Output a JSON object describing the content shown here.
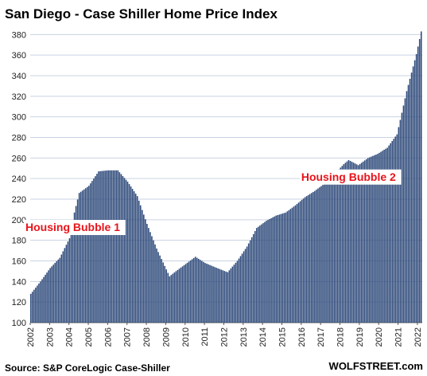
{
  "chart_data": {
    "type": "bar",
    "title": "San Diego - Case Shiller Home Price Index",
    "xlabel": "",
    "ylabel": "",
    "ylim": [
      100,
      388
    ],
    "yticks": [
      100,
      120,
      140,
      160,
      180,
      200,
      220,
      240,
      260,
      280,
      300,
      320,
      340,
      360,
      380
    ],
    "xticks": [
      "2002",
      "2003",
      "2004",
      "2005",
      "2006",
      "2007",
      "2008",
      "2009",
      "2010",
      "2011",
      "2012",
      "2013",
      "2014",
      "2015",
      "2016",
      "2017",
      "2018",
      "2019",
      "2020",
      "2021",
      "2022"
    ],
    "grid": true,
    "bar_color": "#2E4A7A",
    "start_month": "2002-01",
    "anchors": [
      [
        "2002-01",
        128
      ],
      [
        "2002-07",
        140
      ],
      [
        "2003-01",
        153
      ],
      [
        "2003-07",
        163
      ],
      [
        "2004-01",
        182
      ],
      [
        "2004-04",
        207
      ],
      [
        "2004-07",
        226
      ],
      [
        "2005-01",
        233
      ],
      [
        "2005-07",
        247
      ],
      [
        "2006-01",
        248
      ],
      [
        "2006-07",
        248
      ],
      [
        "2007-01",
        237
      ],
      [
        "2007-07",
        223
      ],
      [
        "2008-01",
        196
      ],
      [
        "2008-07",
        172
      ],
      [
        "2009-03",
        145
      ],
      [
        "2009-07",
        150
      ],
      [
        "2010-01",
        157
      ],
      [
        "2010-07",
        164
      ],
      [
        "2011-01",
        158
      ],
      [
        "2011-07",
        154
      ],
      [
        "2012-03",
        149
      ],
      [
        "2012-09",
        160
      ],
      [
        "2013-03",
        174
      ],
      [
        "2013-09",
        192
      ],
      [
        "2014-03",
        199
      ],
      [
        "2014-09",
        204
      ],
      [
        "2015-03",
        207
      ],
      [
        "2015-09",
        214
      ],
      [
        "2016-03",
        222
      ],
      [
        "2016-09",
        228
      ],
      [
        "2017-03",
        235
      ],
      [
        "2017-09",
        244
      ],
      [
        "2018-03",
        254
      ],
      [
        "2018-06",
        258
      ],
      [
        "2018-12",
        253
      ],
      [
        "2019-06",
        260
      ],
      [
        "2019-12",
        264
      ],
      [
        "2020-06",
        270
      ],
      [
        "2020-12",
        283
      ],
      [
        "2021-06",
        325
      ],
      [
        "2021-12",
        361
      ],
      [
        "2022-03",
        383
      ]
    ],
    "annotations": [
      {
        "text": "Housing Bubble 1",
        "color": "#E8141B",
        "at_x": "2002-01",
        "at_y": 189
      },
      {
        "text": "Housing Bubble 2",
        "color": "#E8141B",
        "at_x": "2016-01",
        "at_y": 238
      }
    ]
  },
  "footer": {
    "source": "Source: S&P CoreLogic Case-Shiller",
    "brand": "WOLFSTREET.com"
  }
}
